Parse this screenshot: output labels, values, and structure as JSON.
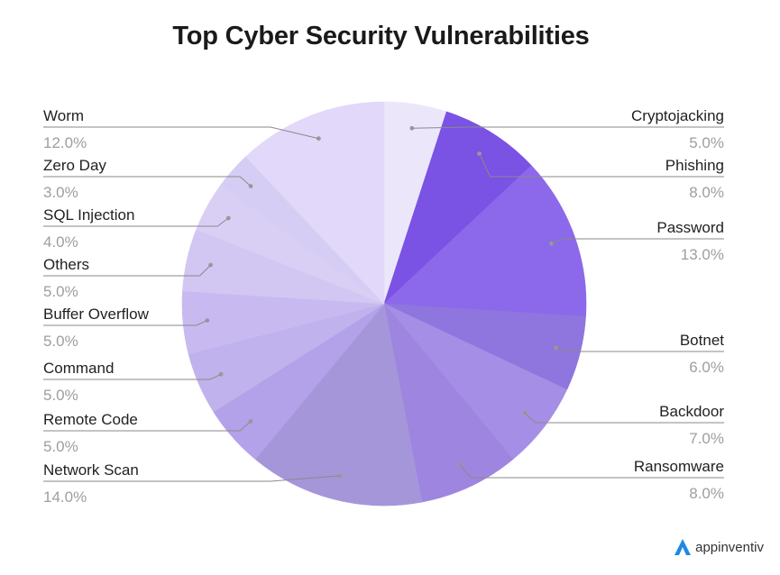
{
  "chart_data": {
    "type": "pie",
    "title": "Top Cyber Security Vulnerabilities",
    "start_angle_deg": 0,
    "direction": "clockwise",
    "slices": [
      {
        "label": "Cryptojacking",
        "value": 5.0,
        "pct_label": "5.0%",
        "color": "#ece6fb",
        "side": "right"
      },
      {
        "label": "Phishing",
        "value": 8.0,
        "pct_label": "8.0%",
        "color": "#7a52e4",
        "side": "right"
      },
      {
        "label": "Password",
        "value": 13.0,
        "pct_label": "13.0%",
        "color": "#8c68ea",
        "side": "right"
      },
      {
        "label": "Botnet",
        "value": 6.0,
        "pct_label": "6.0%",
        "color": "#8f75de",
        "side": "right"
      },
      {
        "label": "Backdoor",
        "value": 7.0,
        "pct_label": "7.0%",
        "color": "#a58ee6",
        "side": "right"
      },
      {
        "label": "Ransomware",
        "value": 8.0,
        "pct_label": "8.0%",
        "color": "#9d85e0",
        "side": "right"
      },
      {
        "label": "Network Scan",
        "value": 14.0,
        "pct_label": "14.0%",
        "color": "#a596da",
        "side": "left"
      },
      {
        "label": "Remote Code",
        "value": 5.0,
        "pct_label": "5.0%",
        "color": "#b3a1ea",
        "side": "left"
      },
      {
        "label": "Command",
        "value": 5.0,
        "pct_label": "5.0%",
        "color": "#c0b2ec",
        "side": "left"
      },
      {
        "label": "Buffer Overflow",
        "value": 5.0,
        "pct_label": "5.0%",
        "color": "#c8baf0",
        "side": "left"
      },
      {
        "label": "Others",
        "value": 5.0,
        "pct_label": "5.0%",
        "color": "#d2c6f3",
        "side": "left"
      },
      {
        "label": "SQL Injection",
        "value": 4.0,
        "pct_label": "4.0%",
        "color": "#d9cff5",
        "side": "left"
      },
      {
        "label": "Zero Day",
        "value": 3.0,
        "pct_label": "3.0%",
        "color": "#d6cdf4",
        "side": "left"
      },
      {
        "label": "Worm",
        "value": 12.0,
        "pct_label": "12.0%",
        "color": "#e1d8fa",
        "side": "left"
      }
    ],
    "legend": "none",
    "label_style": "leader-lines"
  },
  "brand": {
    "name": "appinventiv",
    "color": "#1e88e5"
  }
}
